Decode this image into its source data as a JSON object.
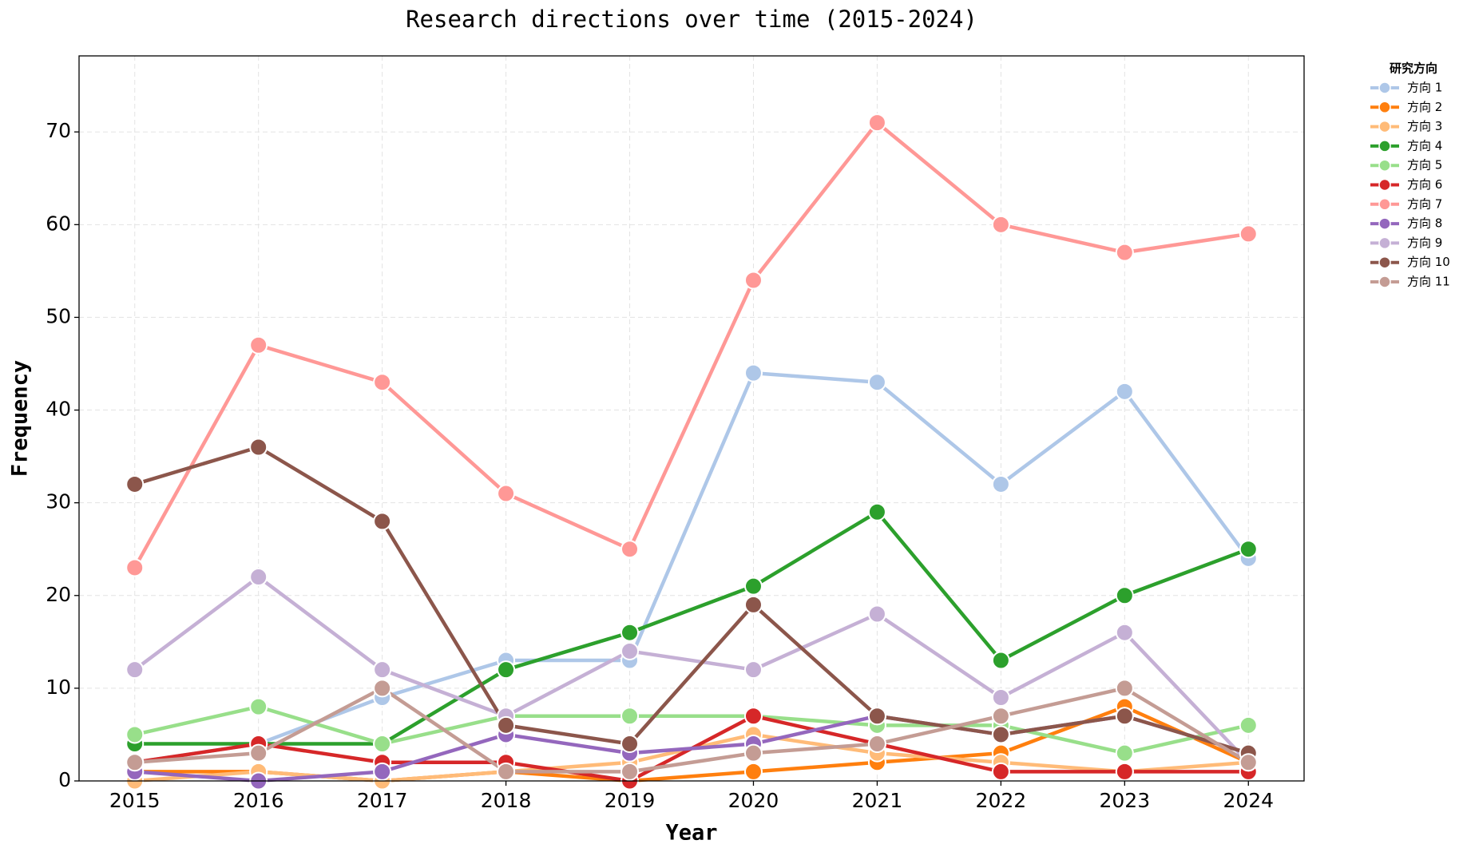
{
  "chart_data": {
    "type": "line",
    "title": "Research directions over time (2015-2024)",
    "x_label": "Year",
    "y_label": "Frequency",
    "x": [
      2015,
      2016,
      2017,
      2018,
      2019,
      2020,
      2021,
      2022,
      2023,
      2024
    ],
    "xlim": [
      2014.55,
      2024.45
    ],
    "xticks": [
      2015,
      2016,
      2017,
      2018,
      2019,
      2020,
      2021,
      2022,
      2023,
      2024
    ],
    "ylim": [
      0,
      78.2
    ],
    "yticks": [
      0,
      10,
      20,
      30,
      40,
      50,
      60,
      70
    ],
    "grid": true,
    "legend_title": "研究方向",
    "legend_position": "outside-right",
    "series": [
      {
        "name": "方向 1",
        "color": "#aec7e8",
        "values": [
          2,
          4,
          9,
          13,
          13,
          44,
          43,
          32,
          42,
          24
        ]
      },
      {
        "name": "方向 2",
        "color": "#ff7f0e",
        "values": [
          1,
          1,
          0,
          1,
          0,
          1,
          2,
          3,
          8,
          2
        ]
      },
      {
        "name": "方向 3",
        "color": "#ffbb78",
        "values": [
          0,
          1,
          0,
          1,
          2,
          5,
          3,
          2,
          1,
          2
        ]
      },
      {
        "name": "方向 4",
        "color": "#2ca02c",
        "values": [
          4,
          4,
          4,
          12,
          16,
          21,
          29,
          13,
          20,
          25
        ]
      },
      {
        "name": "方向 5",
        "color": "#98df8a",
        "values": [
          5,
          8,
          4,
          7,
          7,
          7,
          6,
          6,
          3,
          6
        ]
      },
      {
        "name": "方向 6",
        "color": "#d62728",
        "values": [
          2,
          4,
          2,
          2,
          0,
          7,
          4,
          1,
          1,
          1
        ]
      },
      {
        "name": "方向 7",
        "color": "#ff9896",
        "values": [
          23,
          47,
          43,
          31,
          25,
          54,
          71,
          60,
          57,
          59
        ]
      },
      {
        "name": "方向 8",
        "color": "#9467bd",
        "values": [
          1,
          0,
          1,
          5,
          3,
          4,
          7,
          5,
          7,
          3
        ]
      },
      {
        "name": "方向 9",
        "color": "#c5b0d5",
        "values": [
          12,
          22,
          12,
          7,
          14,
          12,
          18,
          9,
          16,
          2
        ]
      },
      {
        "name": "方向 10",
        "color": "#8c564b",
        "values": [
          32,
          36,
          28,
          6,
          4,
          19,
          7,
          5,
          7,
          3
        ]
      },
      {
        "name": "方向 11",
        "color": "#c49c94",
        "values": [
          2,
          3,
          10,
          1,
          1,
          3,
          4,
          7,
          10,
          2
        ]
      }
    ]
  }
}
